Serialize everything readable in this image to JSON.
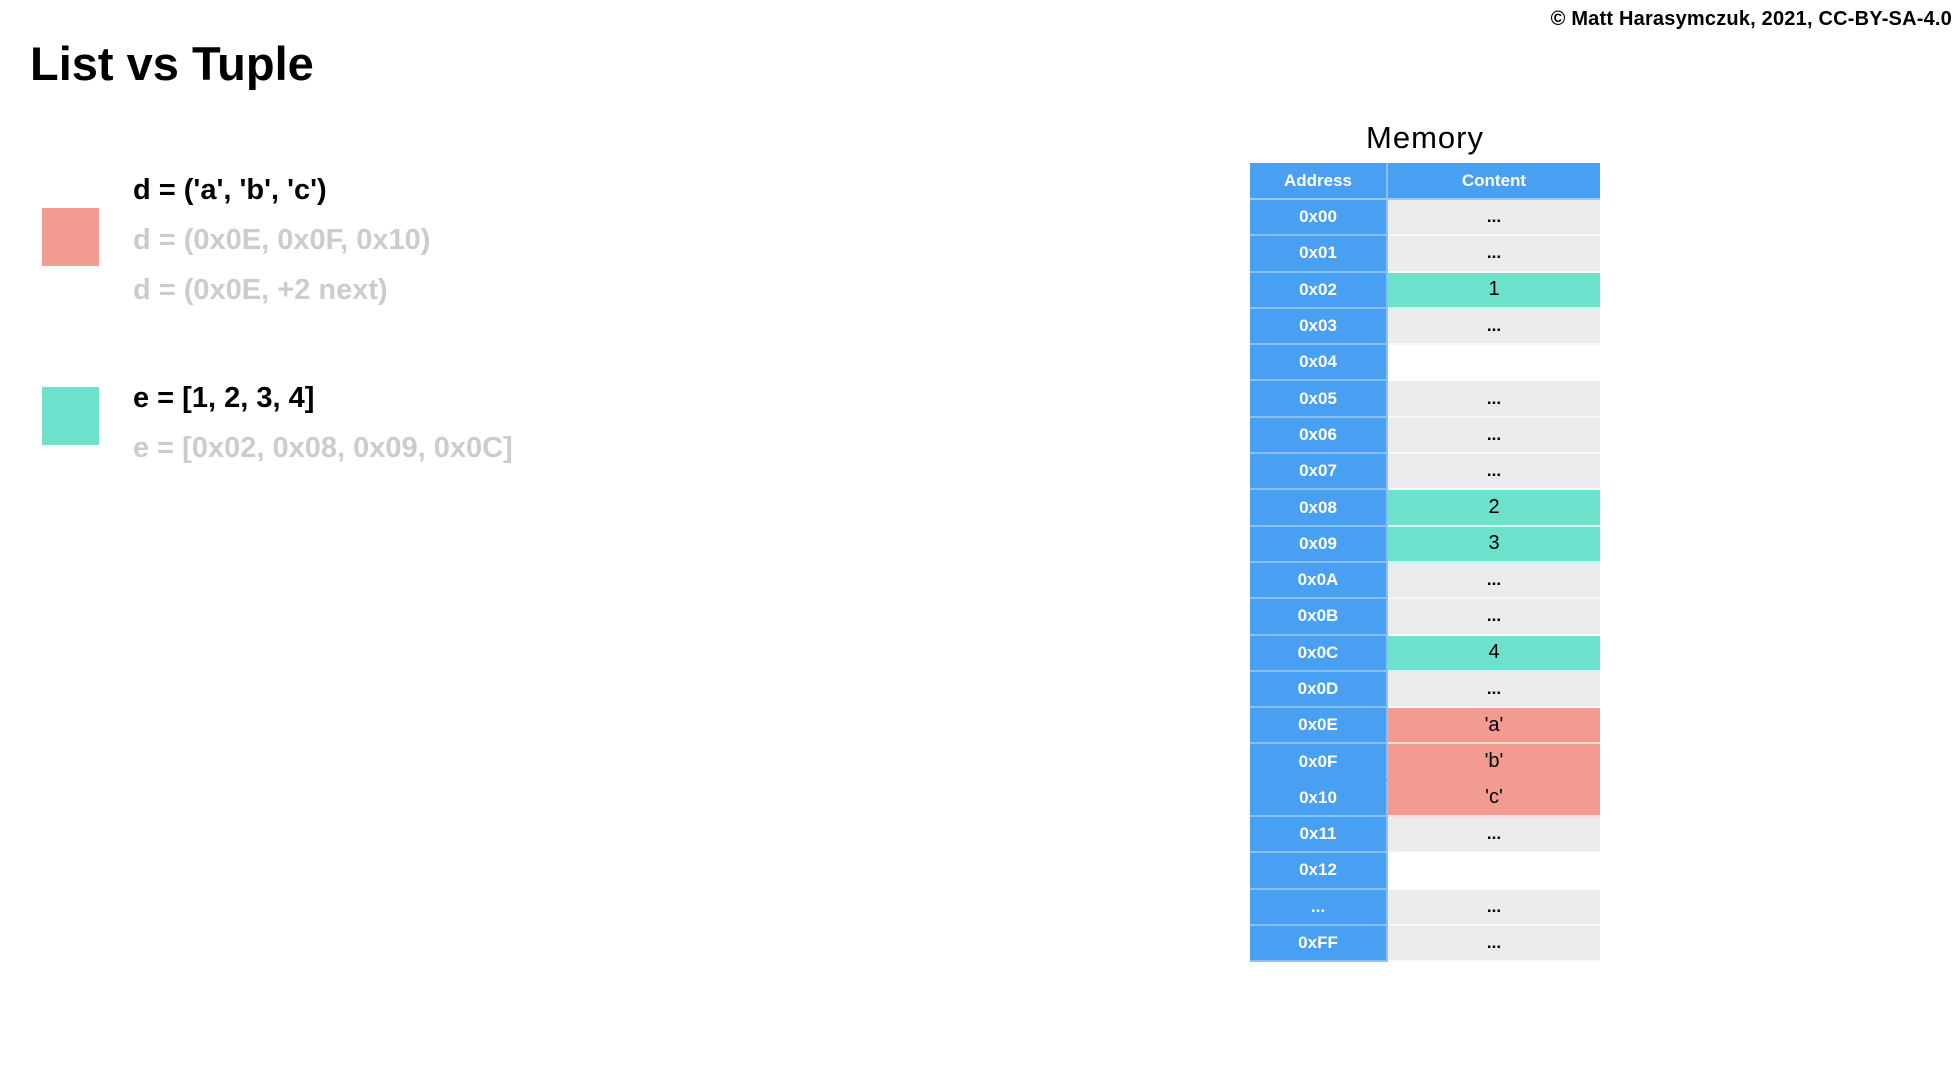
{
  "copyright": "© Matt Harasymczuk, 2021, CC-BY-SA-4.0",
  "title": "List vs Tuple",
  "legend": {
    "tuple_block": {
      "swatch": "tuple-highlight-swatch",
      "lines": [
        {
          "text": "d = ('a', 'b', 'c')",
          "style": "primary"
        },
        {
          "text": "d = (0x0E, 0x0F, 0x10)",
          "style": "muted"
        },
        {
          "text": "d = (0x0E, +2 next)",
          "style": "muted"
        }
      ]
    },
    "list_block": {
      "swatch": "list-highlight-swatch",
      "lines": [
        {
          "text": "e = [1, 2, 3, 4]",
          "style": "primary"
        },
        {
          "text": "e = [0x02, 0x08, 0x09, 0x0C]",
          "style": "muted"
        }
      ]
    }
  },
  "memory": {
    "title": "Memory",
    "columns": [
      "Address",
      "Content"
    ],
    "rows": [
      {
        "address": "0x00",
        "content": "...",
        "highlight": "none"
      },
      {
        "address": "0x01",
        "content": "...",
        "highlight": "none"
      },
      {
        "address": "0x02",
        "content": "1",
        "highlight": "list"
      },
      {
        "address": "0x03",
        "content": "...",
        "highlight": "none"
      },
      {
        "address": "0x04",
        "content": "",
        "highlight": "empty"
      },
      {
        "address": "0x05",
        "content": "...",
        "highlight": "none"
      },
      {
        "address": "0x06",
        "content": "...",
        "highlight": "none"
      },
      {
        "address": "0x07",
        "content": "...",
        "highlight": "none"
      },
      {
        "address": "0x08",
        "content": "2",
        "highlight": "list"
      },
      {
        "address": "0x09",
        "content": "3",
        "highlight": "list"
      },
      {
        "address": "0x0A",
        "content": "...",
        "highlight": "none"
      },
      {
        "address": "0x0B",
        "content": "...",
        "highlight": "none"
      },
      {
        "address": "0x0C",
        "content": "4",
        "highlight": "list"
      },
      {
        "address": "0x0D",
        "content": "...",
        "highlight": "none"
      },
      {
        "address": "0x0E",
        "content": "'a'",
        "highlight": "tuple"
      },
      {
        "address": "0x0F",
        "content": "'b'",
        "highlight": "tuple",
        "separator_below": false
      },
      {
        "address": "0x10",
        "content": "'c'",
        "highlight": "tuple"
      },
      {
        "address": "0x11",
        "content": "...",
        "highlight": "none"
      },
      {
        "address": "0x12",
        "content": "",
        "highlight": "empty"
      },
      {
        "address": "...",
        "content": "...",
        "highlight": "none"
      },
      {
        "address": "0xFF",
        "content": "...",
        "highlight": "none"
      }
    ]
  },
  "colors": {
    "header_blue": "#49A0F2",
    "row_gray": "#ECECEE",
    "list_highlight": "#6DE1CB",
    "tuple_highlight": "#F19B91",
    "muted_text": "#CCCCCC"
  }
}
